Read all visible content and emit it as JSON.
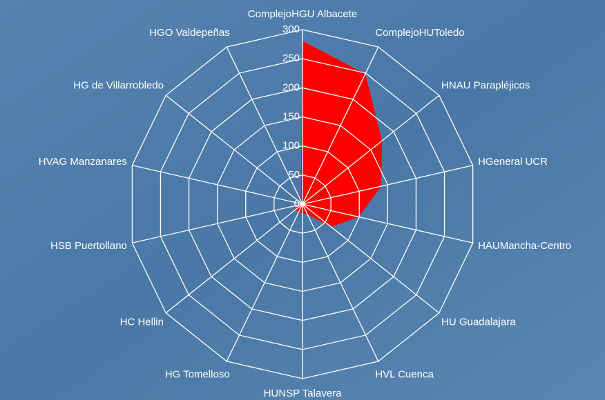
{
  "chart_data": {
    "type": "radar",
    "categories": [
      "ComplejoHGU Albacete",
      "ComplejoHUToledo",
      "HNAU Parapléjicos",
      "HGeneral UCR",
      "HAUMancha-Centro",
      "HU Guadalajara",
      "HVL Cuenca",
      "HUNSP Talavera",
      "HG Tomelloso",
      "HC Hellin",
      "HSB Puertollano",
      "HVAG Manzanares",
      "HG de Villarrobledo",
      "HGO Valdepeñas"
    ],
    "values": [
      280,
      248,
      174,
      138,
      98,
      62,
      18,
      15,
      15,
      15,
      10,
      5,
      5,
      5
    ],
    "color": "#ff0000",
    "ylim": [
      0,
      300
    ],
    "yticks": [
      0,
      50,
      100,
      150,
      200,
      250,
      300
    ],
    "grid": true
  }
}
